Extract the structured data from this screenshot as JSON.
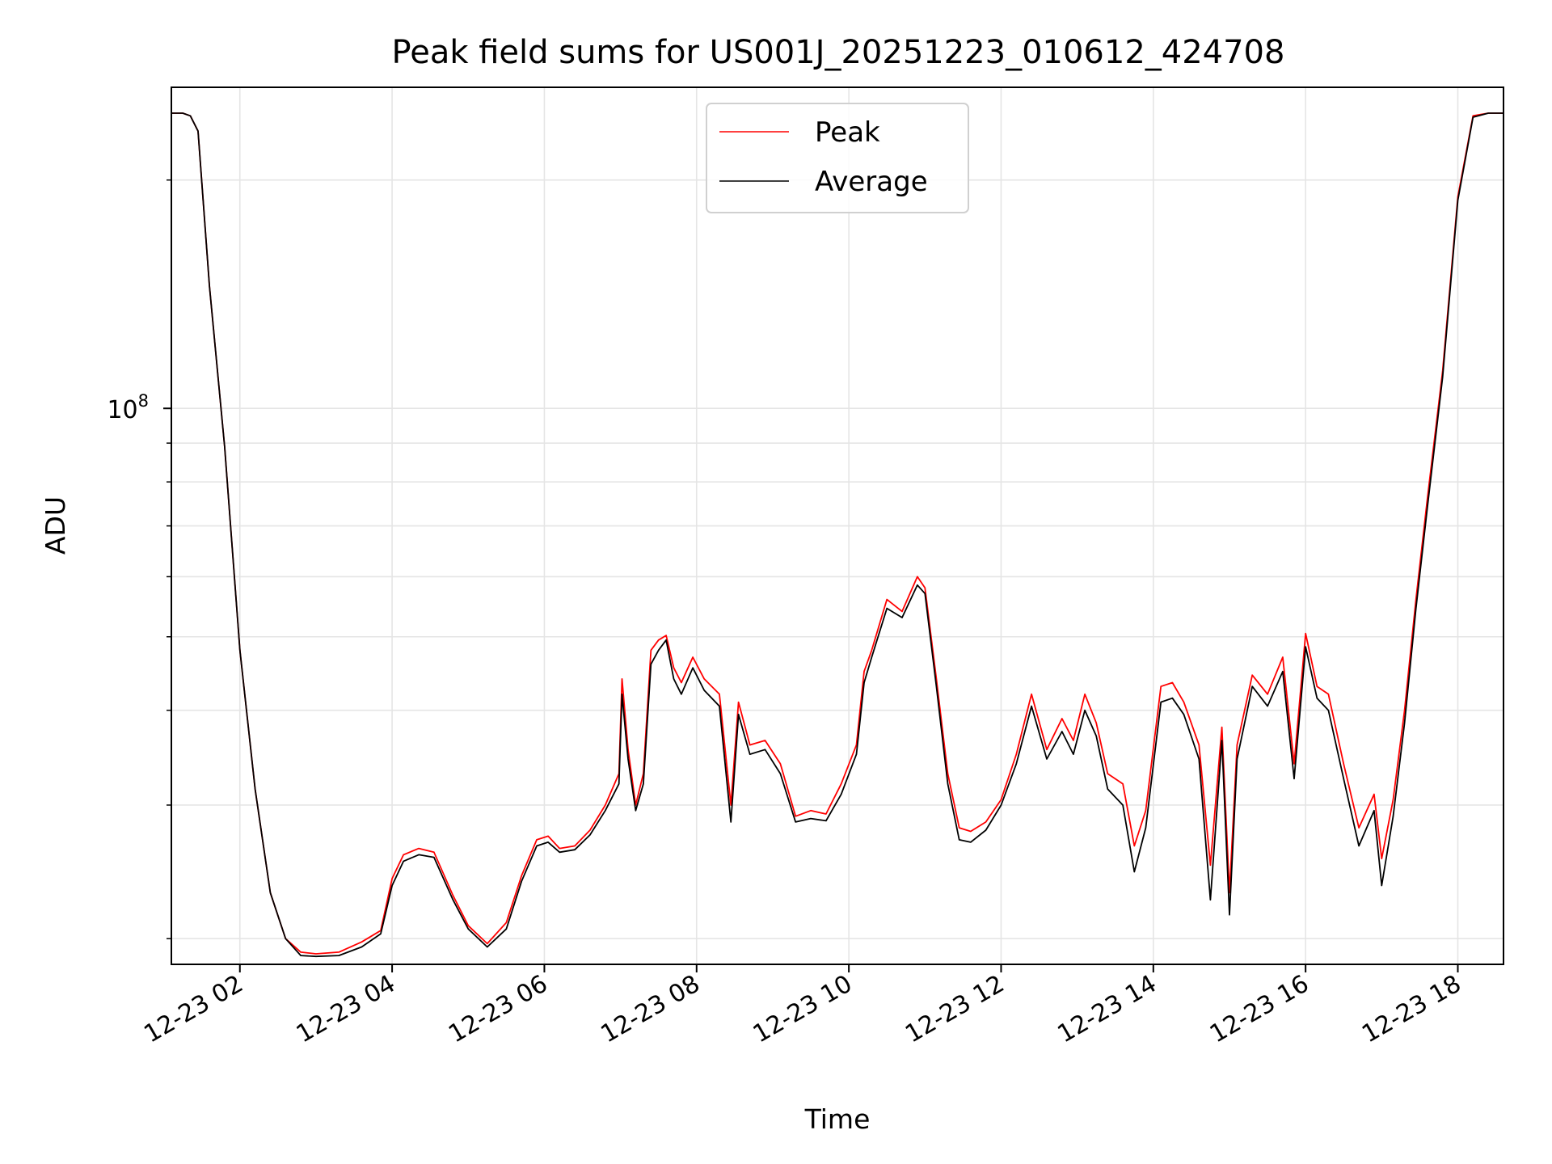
{
  "chart_data": {
    "type": "line",
    "title": "Peak field sums for US001J_20251223_010612_424708",
    "xlabel": "Time",
    "ylabel": "ADU",
    "yscale": "log",
    "ylim": [
      18500000,
      265000000
    ],
    "xlim": [
      1.1,
      18.6
    ],
    "x_unit": "hours since 12-23 00:00",
    "y_tick_major": [
      {
        "value": 100000000,
        "base": "10",
        "exp": "8"
      }
    ],
    "y_tick_minor": [
      20000000,
      30000000,
      40000000,
      50000000,
      60000000,
      70000000,
      80000000,
      90000000,
      200000000
    ],
    "x_ticks": [
      {
        "value": 2,
        "label": "12-23 02"
      },
      {
        "value": 4,
        "label": "12-23 04"
      },
      {
        "value": 6,
        "label": "12-23 06"
      },
      {
        "value": 8,
        "label": "12-23 08"
      },
      {
        "value": 10,
        "label": "12-23 10"
      },
      {
        "value": 12,
        "label": "12-23 12"
      },
      {
        "value": 14,
        "label": "12-23 14"
      },
      {
        "value": 16,
        "label": "12-23 16"
      },
      {
        "value": 18,
        "label": "12-23 18"
      }
    ],
    "legend": {
      "location": "upper center",
      "entries": [
        {
          "name": "Peak",
          "color": "#ff0000"
        },
        {
          "name": "Average",
          "color": "#000000"
        }
      ]
    },
    "grid": true,
    "series": [
      {
        "name": "Peak",
        "color": "#ff0000"
      },
      {
        "name": "Average",
        "color": "#000000"
      }
    ],
    "x": [
      1.1,
      1.25,
      1.35,
      1.45,
      1.6,
      1.8,
      2.0,
      2.2,
      2.4,
      2.6,
      2.8,
      3.0,
      3.3,
      3.6,
      3.85,
      4.0,
      4.15,
      4.35,
      4.55,
      4.8,
      5.0,
      5.25,
      5.5,
      5.7,
      5.9,
      6.05,
      6.2,
      6.4,
      6.6,
      6.8,
      6.98,
      7.02,
      7.1,
      7.2,
      7.3,
      7.4,
      7.5,
      7.6,
      7.7,
      7.8,
      7.95,
      8.1,
      8.3,
      8.45,
      8.55,
      8.7,
      8.9,
      9.1,
      9.3,
      9.5,
      9.7,
      9.9,
      10.1,
      10.2,
      10.3,
      10.5,
      10.7,
      10.9,
      11.0,
      11.15,
      11.3,
      11.45,
      11.6,
      11.8,
      12.0,
      12.2,
      12.4,
      12.6,
      12.8,
      12.95,
      13.1,
      13.25,
      13.4,
      13.6,
      13.75,
      13.9,
      14.1,
      14.25,
      14.4,
      14.6,
      14.75,
      14.9,
      15.0,
      15.1,
      15.3,
      15.5,
      15.7,
      15.85,
      16.0,
      16.15,
      16.3,
      16.5,
      16.7,
      16.9,
      17.0,
      17.15,
      17.3,
      17.45,
      17.6,
      17.8,
      18.0,
      18.2,
      18.4,
      18.6
    ],
    "peak": [
      245000000,
      245000000,
      243000000,
      232000000,
      145000000,
      89000000,
      48000000,
      31500000,
      23000000,
      20000000,
      19200000,
      19100000,
      19200000,
      19800000,
      20500000,
      24000000,
      25800000,
      26300000,
      26000000,
      22800000,
      20800000,
      19700000,
      21000000,
      24200000,
      27000000,
      27300000,
      26300000,
      26500000,
      27800000,
      30000000,
      33000000,
      44000000,
      35500000,
      30000000,
      33000000,
      48000000,
      49500000,
      50200000,
      45500000,
      43500000,
      47000000,
      44000000,
      42000000,
      30000000,
      41000000,
      36000000,
      36500000,
      34000000,
      29000000,
      29500000,
      29200000,
      32000000,
      36000000,
      45000000,
      48000000,
      56000000,
      54000000,
      60000000,
      58000000,
      44000000,
      33000000,
      28000000,
      27700000,
      28500000,
      30500000,
      35000000,
      42000000,
      35500000,
      39000000,
      36500000,
      42000000,
      38500000,
      33000000,
      32000000,
      26500000,
      29500000,
      43000000,
      43500000,
      41000000,
      36000000,
      25000000,
      38000000,
      23000000,
      36000000,
      44500000,
      42000000,
      47000000,
      34000000,
      50500000,
      43000000,
      42000000,
      34000000,
      28000000,
      31000000,
      25500000,
      30500000,
      40000000,
      56000000,
      76000000,
      112000000,
      190000000,
      243000000,
      245000000,
      245000000
    ],
    "average": [
      245000000,
      245000000,
      243000000,
      232000000,
      145000000,
      89000000,
      48000000,
      31500000,
      23000000,
      20000000,
      19000000,
      18950000,
      19000000,
      19500000,
      20300000,
      23500000,
      25300000,
      25800000,
      25600000,
      22500000,
      20600000,
      19500000,
      20600000,
      23800000,
      26500000,
      26800000,
      26000000,
      26200000,
      27400000,
      29500000,
      32000000,
      42000000,
      34500000,
      29500000,
      32000000,
      46000000,
      48000000,
      49500000,
      44000000,
      42000000,
      45500000,
      42500000,
      40500000,
      28500000,
      39500000,
      35000000,
      35500000,
      33000000,
      28500000,
      28800000,
      28600000,
      31000000,
      35000000,
      43500000,
      47000000,
      54500000,
      53000000,
      58500000,
      57000000,
      43000000,
      32000000,
      27000000,
      26800000,
      27800000,
      30000000,
      34000000,
      40500000,
      34500000,
      37500000,
      35000000,
      40000000,
      37000000,
      31500000,
      30000000,
      24500000,
      28000000,
      41000000,
      41500000,
      39500000,
      34500000,
      22500000,
      36500000,
      21500000,
      34500000,
      43000000,
      40500000,
      45000000,
      32500000,
      48500000,
      41500000,
      40000000,
      32500000,
      26500000,
      29500000,
      23500000,
      29000000,
      38500000,
      54500000,
      74000000,
      110000000,
      188000000,
      242000000,
      245000000,
      245000000
    ]
  }
}
